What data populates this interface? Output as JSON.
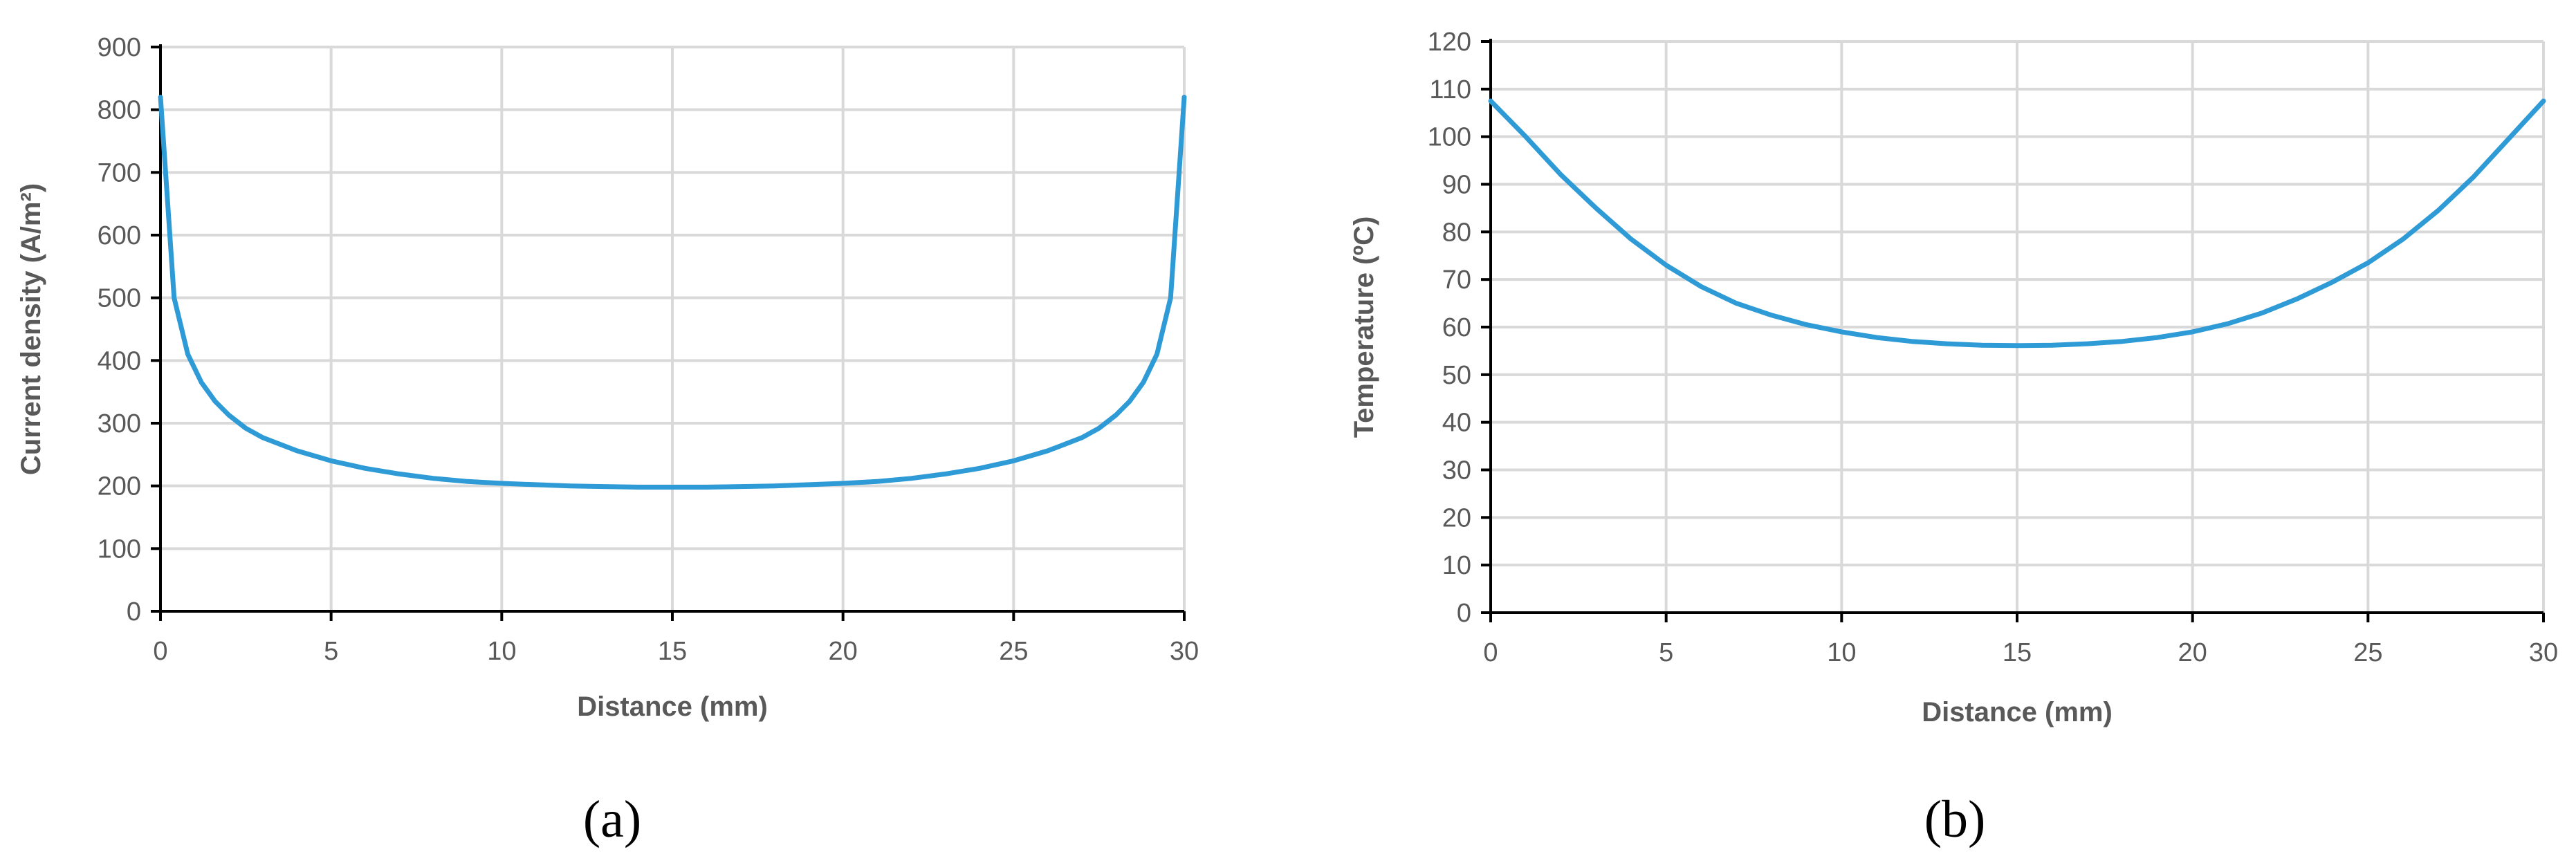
{
  "chart_data": [
    {
      "type": "line",
      "panel_label": "(a)",
      "xlabel": "Distance (mm)",
      "ylabel": "Current density (A/m²)",
      "xlim": [
        0,
        30
      ],
      "ylim": [
        0,
        900
      ],
      "x_ticks": [
        0,
        5,
        10,
        15,
        20,
        25,
        30
      ],
      "y_ticks": [
        0,
        100,
        200,
        300,
        400,
        500,
        600,
        700,
        800,
        900
      ],
      "grid": true,
      "legend": "none",
      "series": [
        {
          "color": "#2e9bd6",
          "x": [
            0,
            0.4,
            0.8,
            1.2,
            1.6,
            2,
            2.5,
            3,
            4,
            5,
            6,
            7,
            8,
            9,
            10,
            11,
            12,
            13,
            14,
            15,
            16,
            17,
            18,
            19,
            20,
            21,
            22,
            23,
            24,
            25,
            26,
            27,
            27.5,
            28,
            28.4,
            28.8,
            29.2,
            29.6,
            30
          ],
          "y": [
            820,
            500,
            410,
            365,
            335,
            313,
            292,
            277,
            256,
            240,
            228,
            219,
            212,
            207,
            204,
            202,
            200,
            199,
            198,
            198,
            198,
            199,
            200,
            202,
            204,
            207,
            212,
            219,
            228,
            240,
            256,
            277,
            292,
            313,
            335,
            365,
            410,
            500,
            820
          ]
        }
      ]
    },
    {
      "type": "line",
      "panel_label": "(b)",
      "xlabel": "Distance (mm)",
      "ylabel": "Temperature (ºC)",
      "xlim": [
        0,
        30
      ],
      "ylim": [
        0,
        120
      ],
      "x_ticks": [
        0,
        5,
        10,
        15,
        20,
        25,
        30
      ],
      "y_ticks": [
        0,
        10,
        20,
        30,
        40,
        50,
        60,
        70,
        80,
        90,
        100,
        110,
        120
      ],
      "grid": true,
      "legend": "none",
      "series": [
        {
          "color": "#2e9bd6",
          "x": [
            0,
            1,
            2,
            3,
            4,
            5,
            6,
            7,
            8,
            9,
            10,
            11,
            12,
            13,
            14,
            15,
            16,
            17,
            18,
            19,
            20,
            21,
            22,
            23,
            24,
            25,
            26,
            27,
            28,
            29,
            30
          ],
          "y": [
            107.5,
            100,
            92,
            85,
            78.5,
            73,
            68.5,
            65,
            62.5,
            60.5,
            59,
            57.8,
            57,
            56.5,
            56.2,
            56.1,
            56.2,
            56.5,
            57,
            57.8,
            59,
            60.7,
            63,
            66,
            69.5,
            73.5,
            78.5,
            84.5,
            91.5,
            99.5,
            107.5
          ]
        }
      ]
    }
  ]
}
